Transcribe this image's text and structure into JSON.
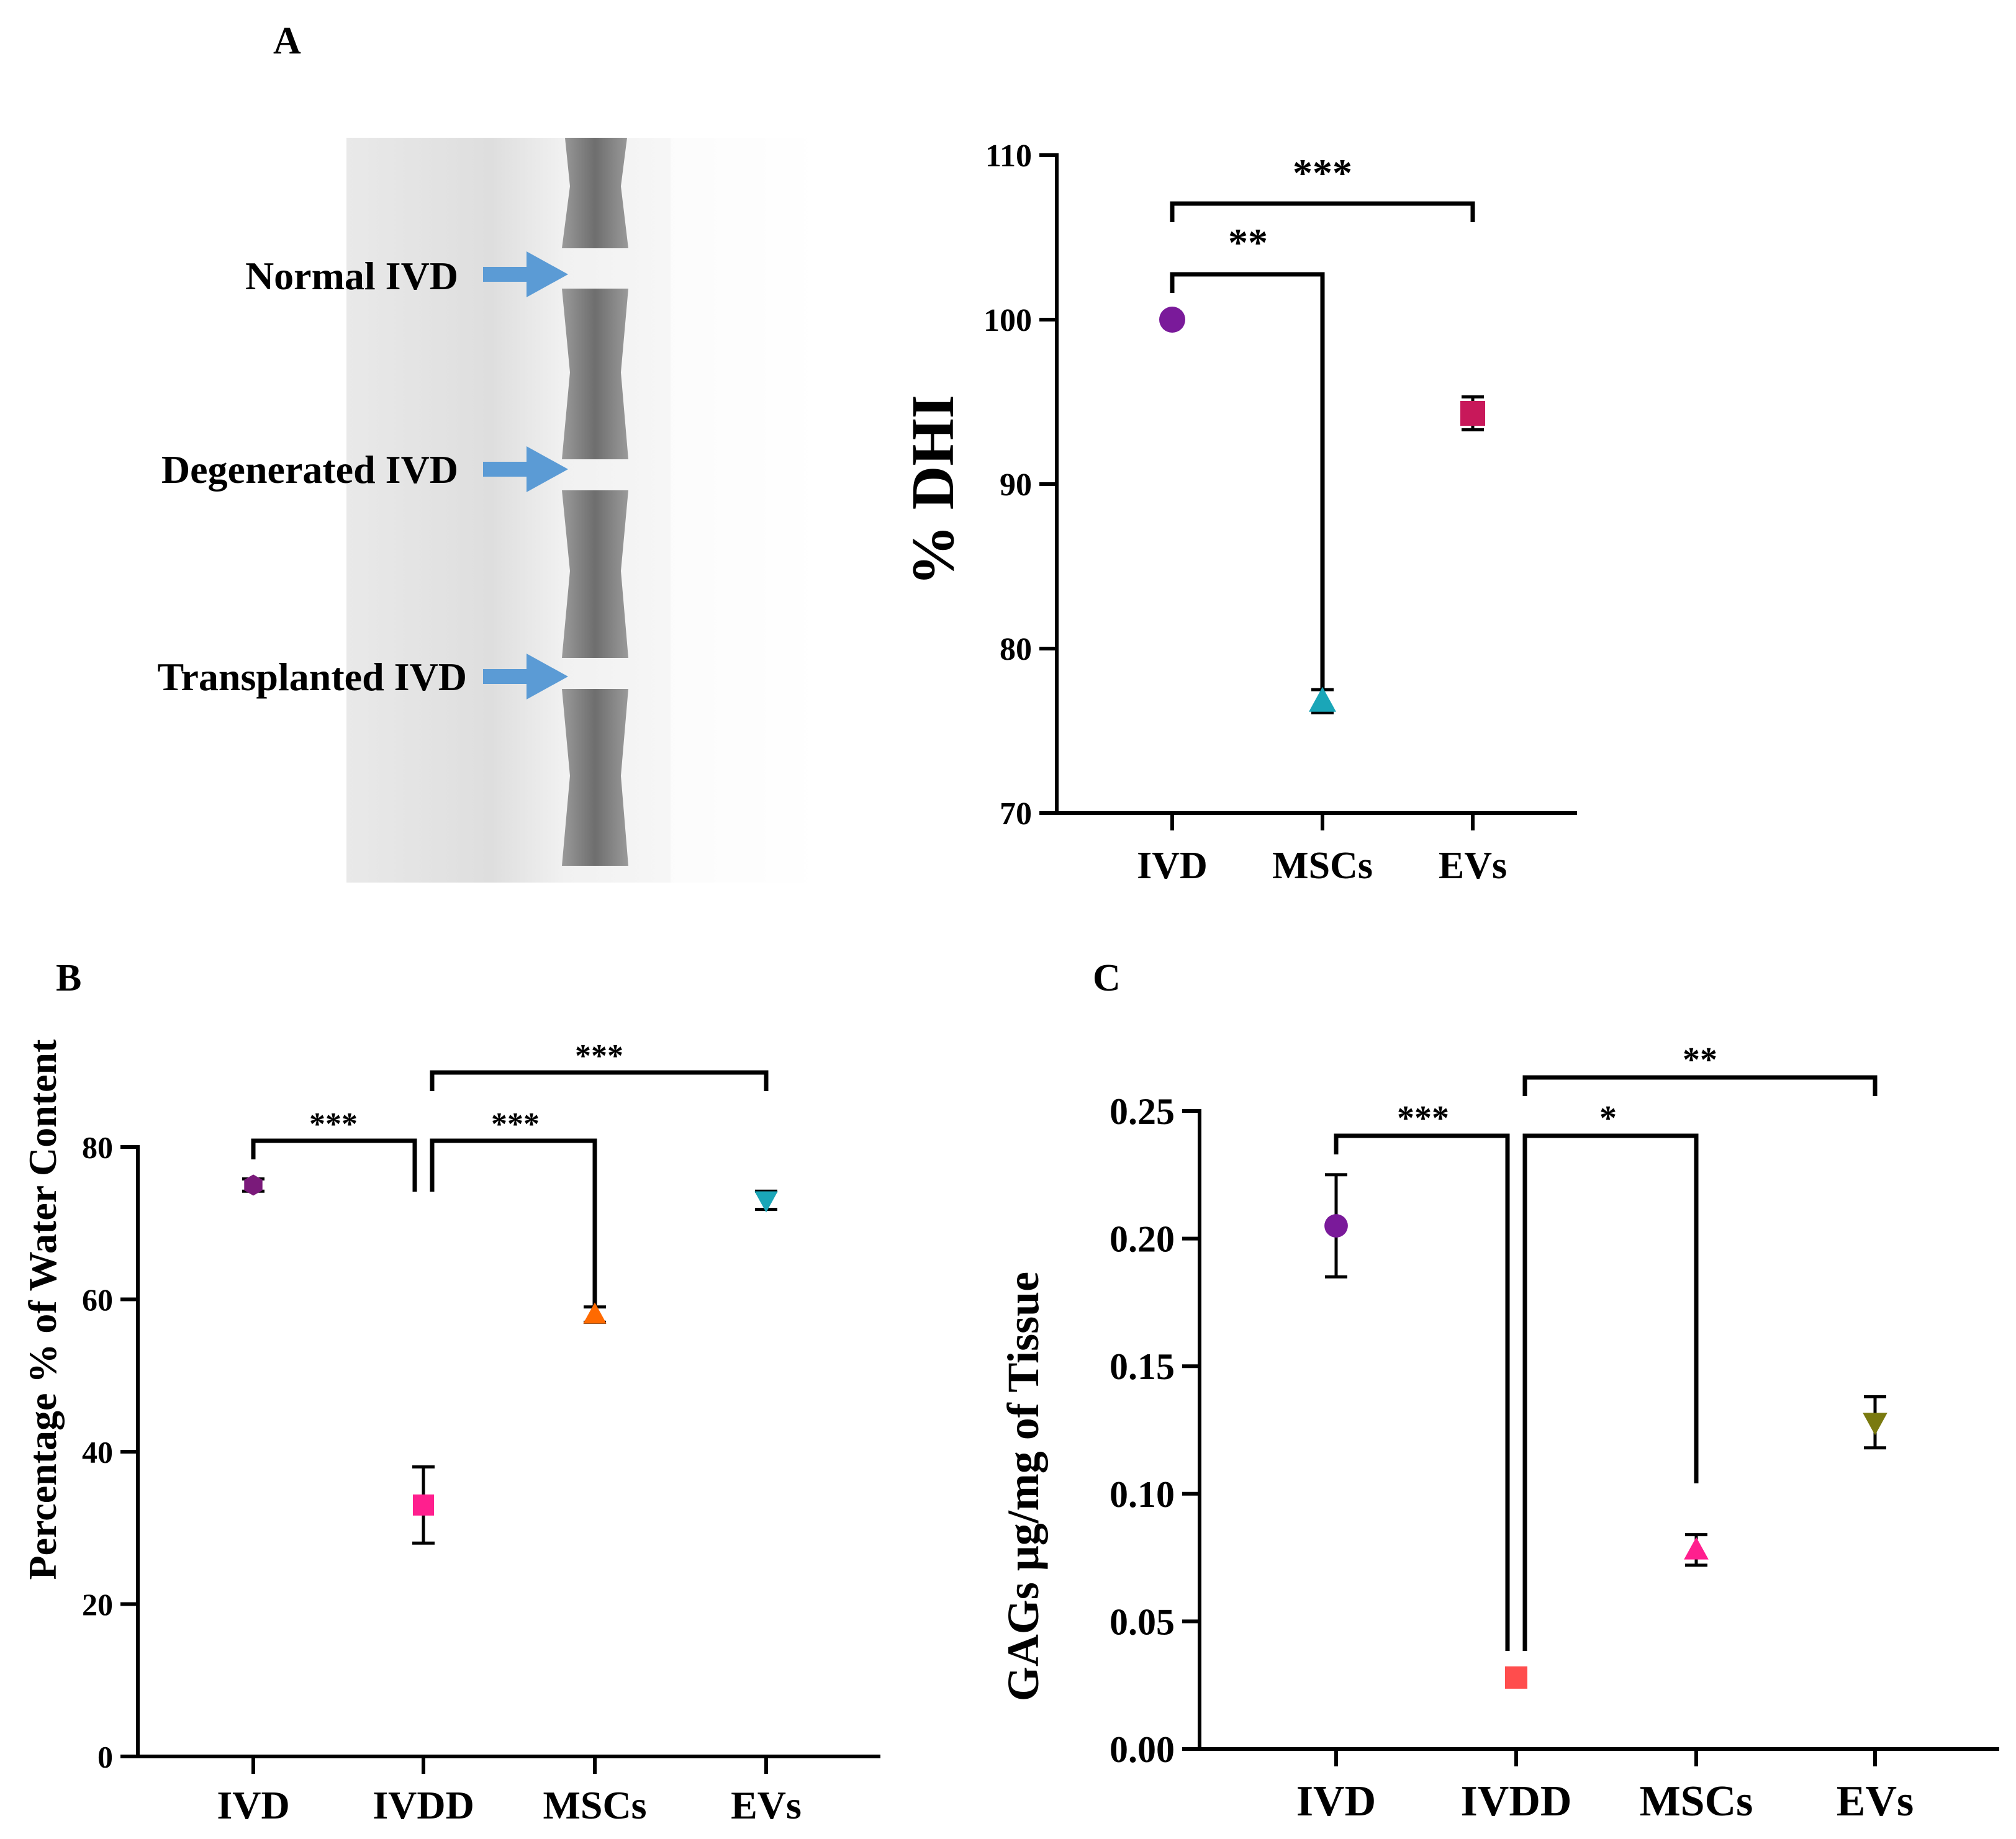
{
  "panel_labels": {
    "a": "A",
    "b": "B",
    "c": "C"
  },
  "xray": {
    "labels": [
      "Normal IVD",
      "Degenerated IVD",
      "Transplanted IVD"
    ],
    "arrow_color": "#5b9bd5"
  },
  "chart_data": [
    {
      "id": "A",
      "type": "scatter",
      "title": "",
      "xlabel": "",
      "ylabel": "% DHI",
      "ylim": [
        70,
        110
      ],
      "yticks": [
        70,
        80,
        90,
        100,
        110
      ],
      "ytick_labels": [
        "70",
        "80",
        "90",
        "100",
        "110"
      ],
      "categories": [
        "IVD",
        "MSCs",
        "EVs"
      ],
      "points": [
        {
          "category": "IVD",
          "value": 100,
          "error": 0,
          "marker": "circle",
          "color": "#7a1a9a"
        },
        {
          "category": "MSCs",
          "value": 76.8,
          "error": 0.7,
          "marker": "triangle-up",
          "color": "#1aa6b8"
        },
        {
          "category": "EVs",
          "value": 94.3,
          "error": 1.0,
          "marker": "square",
          "color": "#c8185a"
        }
      ],
      "significance": [
        {
          "from": "IVD",
          "to": "EVs",
          "label": "***"
        },
        {
          "from": "IVD",
          "to": "MSCs",
          "label": "**"
        }
      ]
    },
    {
      "id": "B",
      "type": "scatter",
      "title": "",
      "xlabel": "",
      "ylabel": "Percentage % of Water Content",
      "ylim": [
        0,
        80
      ],
      "yticks": [
        0,
        20,
        40,
        60,
        80
      ],
      "ytick_labels": [
        "0",
        "20",
        "40",
        "60",
        "80"
      ],
      "categories": [
        "IVD",
        "IVDD",
        "MSCs",
        "EVs"
      ],
      "points": [
        {
          "category": "IVD",
          "value": 75,
          "error": 0.8,
          "marker": "hexagon",
          "color": "#7a1a7a"
        },
        {
          "category": "IVDD",
          "value": 33,
          "error": 5,
          "marker": "square",
          "color": "#ff1f8e"
        },
        {
          "category": "MSCs",
          "value": 58,
          "error": 1,
          "marker": "triangle-up",
          "color": "#ff6a00"
        },
        {
          "category": "EVs",
          "value": 73,
          "error": 1.2,
          "marker": "triangle-down",
          "color": "#1aa6b8"
        }
      ],
      "significance": [
        {
          "from": "IVD",
          "to": "IVDD",
          "label": "***"
        },
        {
          "from": "IVDD",
          "to": "MSCs",
          "label": "***"
        },
        {
          "from": "IVDD",
          "to": "EVs",
          "label": "***"
        }
      ]
    },
    {
      "id": "C",
      "type": "scatter",
      "title": "",
      "xlabel": "",
      "ylabel": "GAGs μg/mg of Tissue",
      "ylim": [
        0,
        0.25
      ],
      "yticks": [
        0,
        0.05,
        0.1,
        0.15,
        0.2,
        0.25
      ],
      "ytick_labels": [
        "0.00",
        "0.05",
        "0.10",
        "0.15",
        "0.20",
        "0.25"
      ],
      "categories": [
        "IVD",
        "IVDD",
        "MSCs",
        "EVs"
      ],
      "points": [
        {
          "category": "IVD",
          "value": 0.205,
          "error": 0.02,
          "marker": "circle",
          "color": "#7a1a9a"
        },
        {
          "category": "IVDD",
          "value": 0.028,
          "error": 0,
          "marker": "square",
          "color": "#ff4d4d"
        },
        {
          "category": "MSCs",
          "value": 0.078,
          "error": 0.006,
          "marker": "triangle-up",
          "color": "#ff1f8e"
        },
        {
          "category": "EVs",
          "value": 0.128,
          "error": 0.01,
          "marker": "triangle-down",
          "color": "#7a7a10"
        }
      ],
      "significance": [
        {
          "from": "IVD",
          "to": "IVDD",
          "label": "***"
        },
        {
          "from": "IVDD",
          "to": "MSCs",
          "label": "*"
        },
        {
          "from": "IVDD",
          "to": "EVs",
          "label": "**"
        }
      ]
    }
  ]
}
